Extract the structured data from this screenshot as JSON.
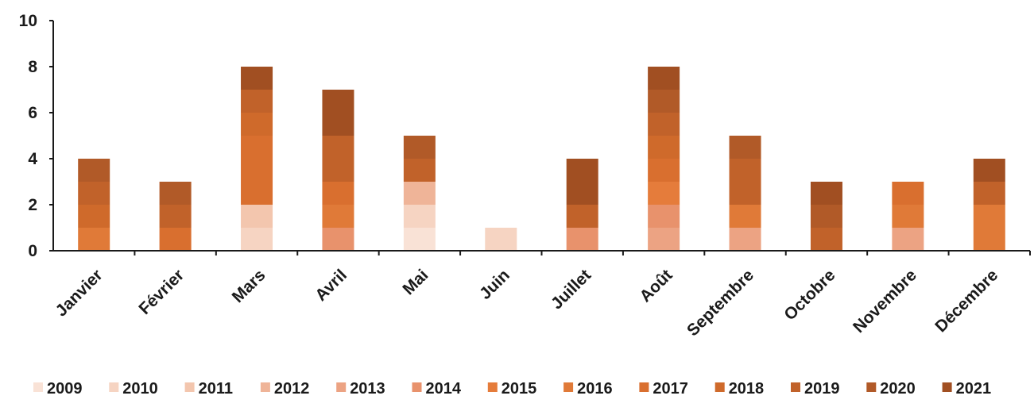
{
  "chart_data": {
    "type": "bar",
    "stacked": true,
    "categories": [
      "Janvier",
      "Février",
      "Mars",
      "Avril",
      "Mai",
      "Juin",
      "Juillet",
      "Août",
      "Septembre",
      "Octobre",
      "Novembre",
      "Décembre"
    ],
    "ylim": [
      0,
      10
    ],
    "yticks": [
      0,
      2,
      4,
      6,
      8,
      10
    ],
    "grid": false,
    "legend_position": "bottom",
    "series": [
      {
        "name": "2009",
        "color": "#f9e2d6",
        "values": [
          0,
          0,
          0,
          0,
          1,
          0,
          0,
          0,
          0,
          0,
          0,
          0
        ]
      },
      {
        "name": "2010",
        "color": "#f6d4c2",
        "values": [
          0,
          0,
          1,
          0,
          1,
          1,
          0,
          0,
          0,
          0,
          0,
          0
        ]
      },
      {
        "name": "2011",
        "color": "#f3c6ae",
        "values": [
          0,
          0,
          1,
          0,
          0,
          0,
          0,
          0,
          0,
          0,
          0,
          0
        ]
      },
      {
        "name": "2012",
        "color": "#efb498",
        "values": [
          0,
          0,
          0,
          0,
          1,
          0,
          0,
          0,
          0,
          0,
          0,
          0
        ]
      },
      {
        "name": "2013",
        "color": "#eca383",
        "values": [
          0,
          0,
          0,
          0,
          0,
          0,
          0,
          1,
          1,
          0,
          1,
          0
        ]
      },
      {
        "name": "2014",
        "color": "#e8926c",
        "values": [
          0,
          0,
          0,
          1,
          0,
          0,
          1,
          1,
          0,
          0,
          0,
          0
        ]
      },
      {
        "name": "2015",
        "color": "#e57c3b",
        "values": [
          0,
          0,
          0,
          0,
          0,
          0,
          0,
          1,
          0,
          0,
          0,
          0
        ]
      },
      {
        "name": "2016",
        "color": "#e07a38",
        "values": [
          1,
          0,
          0,
          1,
          0,
          0,
          0,
          0,
          1,
          0,
          1,
          2
        ]
      },
      {
        "name": "2017",
        "color": "#d96f2f",
        "values": [
          0,
          1,
          3,
          1,
          0,
          0,
          0,
          1,
          0,
          0,
          1,
          0
        ]
      },
      {
        "name": "2018",
        "color": "#cf6a2b",
        "values": [
          1,
          0,
          1,
          0,
          0,
          0,
          0,
          1,
          0,
          0,
          0,
          0
        ]
      },
      {
        "name": "2019",
        "color": "#c1622a",
        "values": [
          1,
          1,
          1,
          2,
          1,
          0,
          1,
          1,
          2,
          1,
          0,
          1
        ]
      },
      {
        "name": "2020",
        "color": "#b15a28",
        "values": [
          1,
          1,
          0,
          0,
          1,
          0,
          0,
          1,
          1,
          1,
          0,
          0
        ]
      },
      {
        "name": "2021",
        "color": "#a14f22",
        "values": [
          0,
          0,
          1,
          2,
          0,
          0,
          2,
          1,
          0,
          1,
          0,
          1
        ]
      }
    ]
  }
}
